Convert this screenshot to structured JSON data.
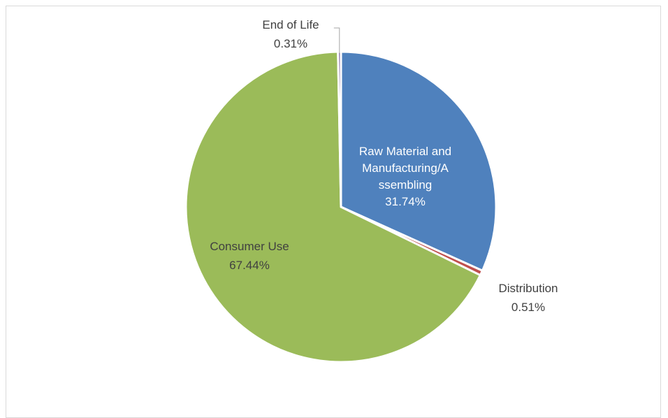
{
  "chart_data": {
    "type": "pie",
    "title": "",
    "categories": [
      "Raw Material and Manufacturing/Assembling",
      "Distribution",
      "Consumer Use",
      "End of Life"
    ],
    "values": [
      31.74,
      0.51,
      67.44,
      0.31
    ],
    "value_unit": "%",
    "colors": [
      "#4f81bd",
      "#c0504d",
      "#9bbb59",
      "#8064a2"
    ],
    "legend": "none",
    "data_labels": [
      {
        "lines": [
          "Raw Material and",
          "Manufacturing/A",
          "ssembling",
          "31.74%"
        ],
        "color": "#ffffff"
      },
      {
        "lines": [
          "Distribution",
          "0.51%"
        ],
        "color": "#404040"
      },
      {
        "lines": [
          "Consumer Use",
          "67.44%"
        ],
        "color": "#404040"
      },
      {
        "lines": [
          "End of Life",
          "0.31%"
        ],
        "color": "#404040"
      }
    ]
  }
}
